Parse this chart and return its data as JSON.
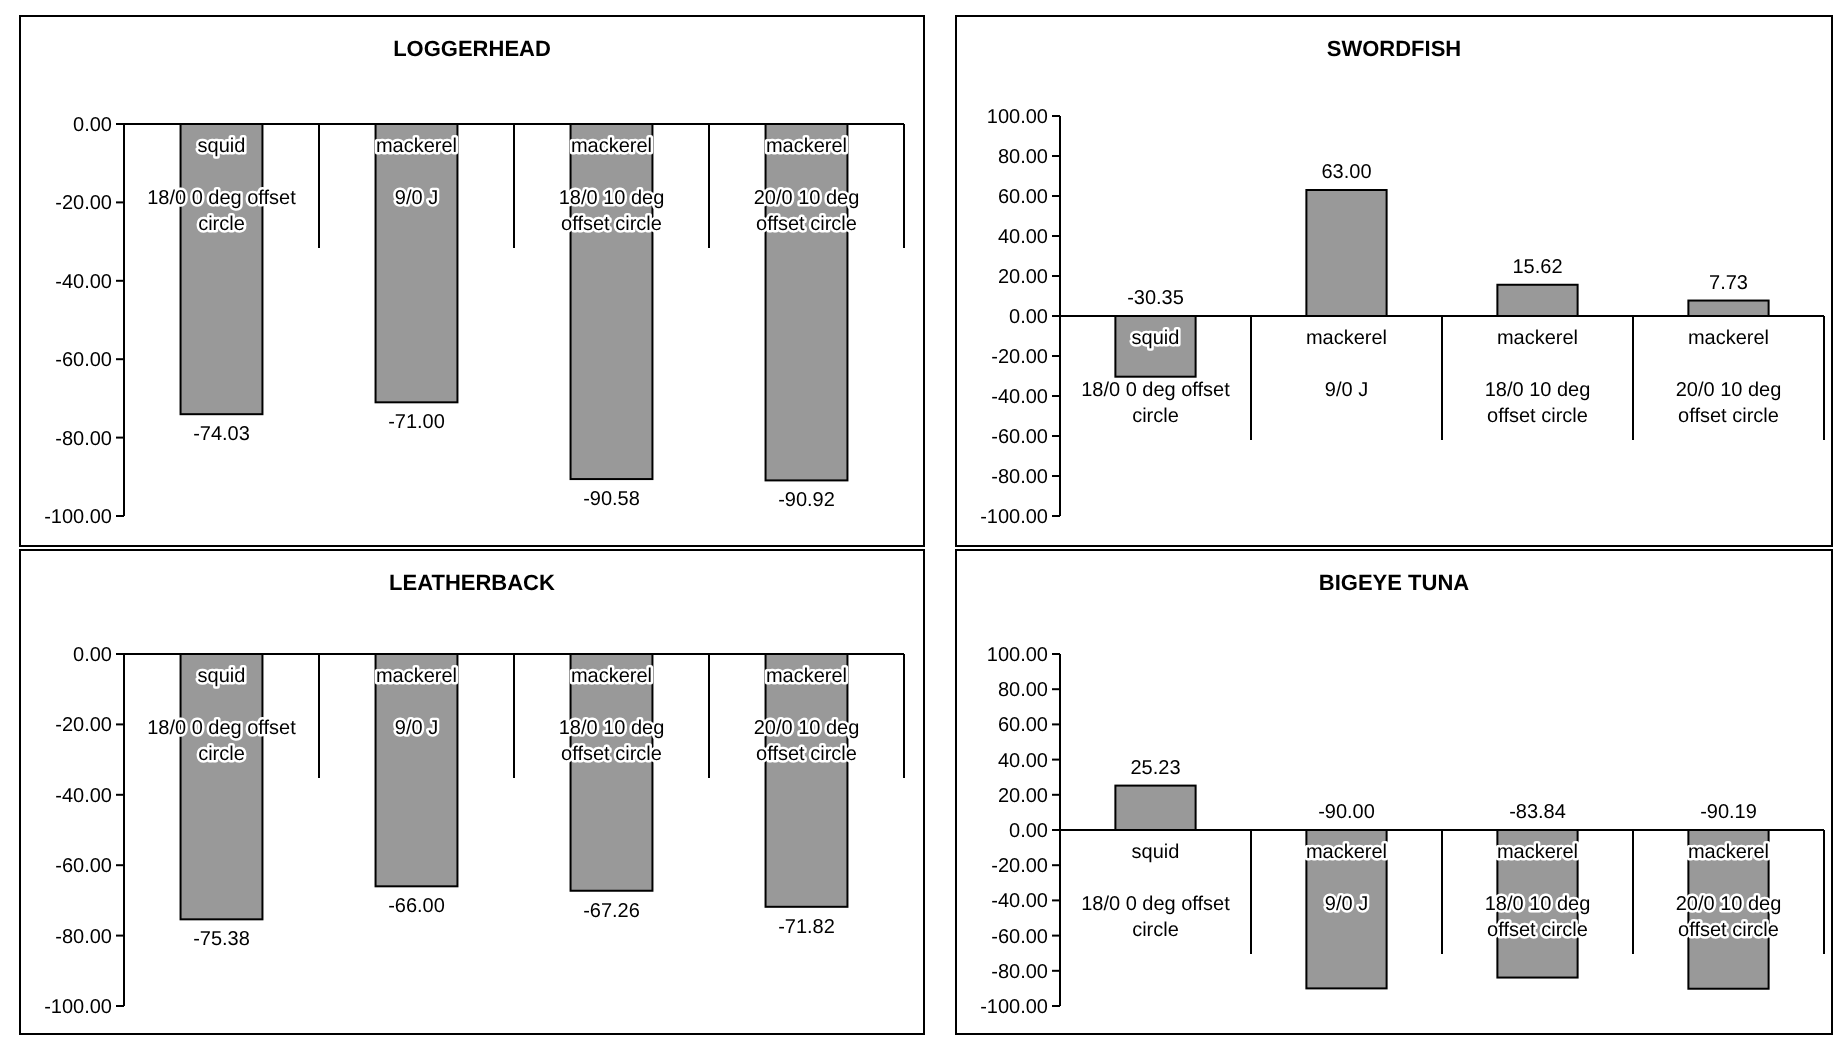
{
  "chart_data": [
    {
      "type": "bar",
      "title": "LOGGERHEAD",
      "categories": [
        "squid\n18/0 0 deg offset circle",
        "mackerel\n9/0 J",
        "mackerel\n18/0 10 deg offset circle",
        "mackerel\n20/0 10 deg offset circle"
      ],
      "values": [
        -74.03,
        -71.0,
        -90.58,
        -90.92
      ],
      "value_labels": [
        "-74.03",
        "-71.00",
        "-90.58",
        "-90.92"
      ],
      "color": "#999999",
      "ylim": [
        -100,
        0
      ],
      "yticks": [
        {
          "value": 0,
          "label": "0.00"
        },
        {
          "value": -20,
          "label": "-20.00"
        },
        {
          "value": -40,
          "label": "-40.00"
        },
        {
          "value": -60,
          "label": "-60.00"
        },
        {
          "value": -80,
          "label": "-80.00"
        },
        {
          "value": -100,
          "label": "-100.00"
        }
      ]
    },
    {
      "type": "bar",
      "title": "SWORDFISH",
      "categories": [
        "squid\n18/0 0 deg offset circle",
        "mackerel\n9/0 J",
        "mackerel\n18/0 10 deg offset circle",
        "mackerel\n20/0 10 deg offset circle"
      ],
      "values": [
        -30.35,
        63.0,
        15.62,
        7.73
      ],
      "value_labels": [
        "-30.35",
        "63.00",
        "15.62",
        "7.73"
      ],
      "color": "#999999",
      "ylim": [
        -100,
        100
      ],
      "yticks": [
        {
          "value": 100,
          "label": "100.00"
        },
        {
          "value": 80,
          "label": "80.00"
        },
        {
          "value": 60,
          "label": "60.00"
        },
        {
          "value": 40,
          "label": "40.00"
        },
        {
          "value": 20,
          "label": "20.00"
        },
        {
          "value": 0,
          "label": "0.00"
        },
        {
          "value": -20,
          "label": "-20.00"
        },
        {
          "value": -40,
          "label": "-40.00"
        },
        {
          "value": -60,
          "label": "-60.00"
        },
        {
          "value": -80,
          "label": "-80.00"
        },
        {
          "value": -100,
          "label": "-100.00"
        }
      ]
    },
    {
      "type": "bar",
      "title": "LEATHERBACK",
      "categories": [
        "squid\n18/0 0 deg offset circle",
        "mackerel\n9/0 J",
        "mackerel\n18/0 10 deg offset circle",
        "mackerel\n20/0 10 deg offset circle"
      ],
      "values": [
        -75.38,
        -66.0,
        -67.26,
        -71.82
      ],
      "value_labels": [
        "-75.38",
        "-66.00",
        "-67.26",
        "-71.82"
      ],
      "color": "#999999",
      "ylim": [
        -100,
        0
      ],
      "yticks": [
        {
          "value": 0,
          "label": "0.00"
        },
        {
          "value": -20,
          "label": "-20.00"
        },
        {
          "value": -40,
          "label": "-40.00"
        },
        {
          "value": -60,
          "label": "-60.00"
        },
        {
          "value": -80,
          "label": "-80.00"
        },
        {
          "value": -100,
          "label": "-100.00"
        }
      ]
    },
    {
      "type": "bar",
      "title": "BIGEYE TUNA",
      "categories": [
        "squid\n18/0 0 deg offset circle",
        "mackerel\n9/0 J",
        "mackerel\n18/0 10 deg offset circle",
        "mackerel\n20/0 10 deg offset circle"
      ],
      "values": [
        25.23,
        -90.0,
        -83.84,
        -90.19
      ],
      "value_labels": [
        "25.23",
        "-90.00",
        "-83.84",
        "-90.19"
      ],
      "color": "#999999",
      "ylim": [
        -100,
        100
      ],
      "yticks": [
        {
          "value": 100,
          "label": "100.00"
        },
        {
          "value": 80,
          "label": "80.00"
        },
        {
          "value": 60,
          "label": "60.00"
        },
        {
          "value": 40,
          "label": "40.00"
        },
        {
          "value": 20,
          "label": "20.00"
        },
        {
          "value": 0,
          "label": "0.00"
        },
        {
          "value": -20,
          "label": "-20.00"
        },
        {
          "value": -40,
          "label": "-40.00"
        },
        {
          "value": -60,
          "label": "-60.00"
        },
        {
          "value": -80,
          "label": "-80.00"
        },
        {
          "value": -100,
          "label": "-100.00"
        }
      ]
    }
  ]
}
